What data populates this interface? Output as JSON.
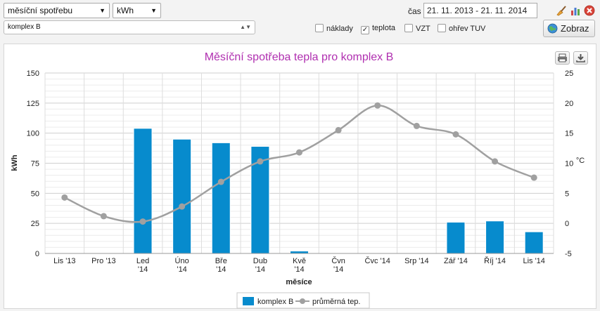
{
  "controls": {
    "metric_select": "měsíční spotřebu",
    "unit_select": "kWh",
    "object_select": "komplex B",
    "time_label": "čas",
    "date_range": "21. 11. 2013 - 21. 11. 2014",
    "submit_label": "Zobraz"
  },
  "checkboxes": [
    {
      "label": "náklady",
      "checked": false
    },
    {
      "label": "teplota",
      "checked": true
    },
    {
      "label": "VZT",
      "checked": false
    },
    {
      "label": "ohřev TUV",
      "checked": false
    }
  ],
  "chart_data": {
    "type": "bar",
    "title": "Měsíční spotřeba tepla pro komplex B",
    "xlabel": "měsíce",
    "ylabel": "kWh",
    "y2label": "°C",
    "categories": [
      "Lis '13",
      "Pro '13",
      "Led '14",
      "Úno '14",
      "Bře '14",
      "Dub '14",
      "Kvě '14",
      "Čvn '14",
      "Čvc '14",
      "Srp '14",
      "Zář '14",
      "Říj '14",
      "Lis '14"
    ],
    "ylim": [
      0,
      150
    ],
    "y2lim": [
      -5,
      25
    ],
    "yticks": [
      "0",
      "25",
      "50",
      "75",
      "100",
      "125",
      "150"
    ],
    "y2ticks": [
      "-5",
      "0",
      "5",
      "10",
      "15",
      "20",
      "25"
    ],
    "series": [
      {
        "name": "komplex B",
        "type": "bar",
        "color": "#078bcd",
        "values": [
          0,
          0,
          104,
          95,
          92,
          89,
          2,
          0,
          0,
          0,
          26,
          27,
          18
        ]
      },
      {
        "name": "průměrná tep.",
        "type": "line",
        "axis": "right",
        "color": "#a0a0a0",
        "values": [
          4.3,
          1.2,
          0.3,
          2.8,
          6.9,
          10.3,
          11.8,
          15.5,
          19.6,
          16.2,
          14.8,
          10.3,
          7.6
        ]
      }
    ],
    "grid": true,
    "legend": "bottom-center"
  }
}
